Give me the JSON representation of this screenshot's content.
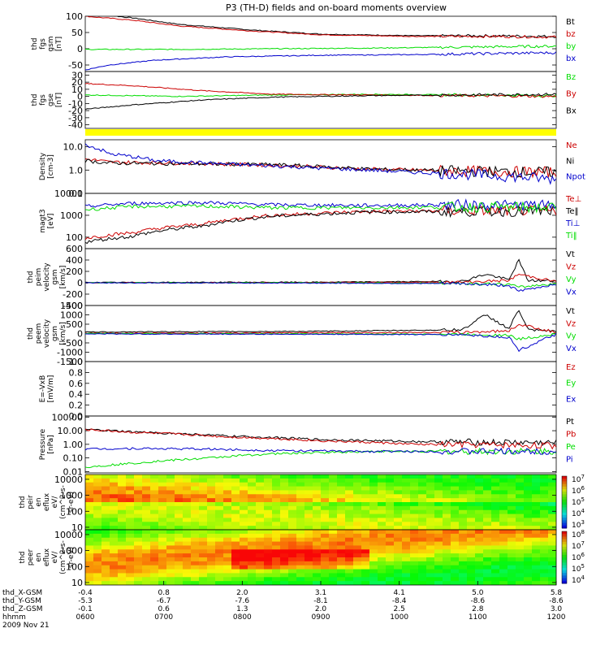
{
  "title": "P3 (TH-D) fields and on-board moments overview",
  "colors": {
    "black": "#000000",
    "red": "#cc0000",
    "green": "#00dd00",
    "blue": "#0000cc",
    "yellow": "#ffff00"
  },
  "chart_data": [
    {
      "type": "line",
      "ylabel": [
        "thd",
        "fgs",
        "gsm",
        "[nT]"
      ],
      "ylim": [
        -70,
        100
      ],
      "yticks": [
        -50,
        0,
        50,
        100
      ],
      "series": [
        {
          "name": "Bt",
          "color": "#000000",
          "x": [
            0,
            0.1,
            0.2,
            0.35,
            0.5,
            0.7,
            0.85,
            1.0
          ],
          "y": [
            110,
            95,
            75,
            58,
            45,
            40,
            40,
            38
          ]
        },
        {
          "name": "bz",
          "color": "#cc0000",
          "x": [
            0,
            0.1,
            0.2,
            0.35,
            0.5,
            0.7,
            0.85,
            1.0
          ],
          "y": [
            100,
            88,
            70,
            55,
            43,
            38,
            38,
            36
          ]
        },
        {
          "name": "by",
          "color": "#00dd00",
          "x": [
            0,
            0.2,
            0.4,
            0.6,
            0.8,
            1.0
          ],
          "y": [
            -2,
            -2,
            0,
            2,
            5,
            8
          ]
        },
        {
          "name": "bx",
          "color": "#0000cc",
          "x": [
            0,
            0.05,
            0.15,
            0.3,
            0.5,
            0.7,
            0.85,
            1.0
          ],
          "y": [
            -65,
            -50,
            -35,
            -25,
            -20,
            -18,
            -15,
            -12
          ]
        }
      ]
    },
    {
      "type": "line",
      "ylabel": [
        "thd",
        "fgs",
        "gse",
        "[nT]"
      ],
      "ylim": [
        -45,
        35
      ],
      "yticks": [
        -40,
        -30,
        -20,
        -10,
        0,
        10,
        20,
        30
      ],
      "series": [
        {
          "name": "Bz",
          "color": "#00dd00",
          "x": [
            0,
            0.2,
            0.4,
            0.6,
            0.8,
            1.0
          ],
          "y": [
            2,
            0,
            2,
            3,
            2,
            1
          ]
        },
        {
          "name": "By",
          "color": "#cc0000",
          "x": [
            0,
            0.1,
            0.25,
            0.4,
            0.6,
            0.8,
            1.0
          ],
          "y": [
            18,
            15,
            8,
            3,
            2,
            1,
            0
          ]
        },
        {
          "name": "Bx",
          "color": "#000000",
          "x": [
            0,
            0.1,
            0.25,
            0.4,
            0.6,
            0.8,
            1.0
          ],
          "y": [
            -18,
            -12,
            -5,
            -1,
            1,
            2,
            3
          ]
        }
      ]
    },
    {
      "type": "line",
      "ylabel": [
        "Density",
        "[cm-3]"
      ],
      "yscale": "log",
      "ylim": [
        0.1,
        20
      ],
      "ytick_labels": [
        "0.1",
        "1.0",
        "10.0"
      ],
      "series": [
        {
          "name": "Ne",
          "color": "#cc0000",
          "x": [
            0,
            0.05,
            0.2,
            0.4,
            0.6,
            0.8,
            1.0
          ],
          "y": [
            3.0,
            2.2,
            2.0,
            1.6,
            1.1,
            0.9,
            0.8
          ]
        },
        {
          "name": "Ni",
          "color": "#000000",
          "x": [
            0,
            0.05,
            0.2,
            0.4,
            0.6,
            0.8,
            1.0
          ],
          "y": [
            2.5,
            2.0,
            1.9,
            1.7,
            1.1,
            0.9,
            0.8
          ]
        },
        {
          "name": "Npot",
          "color": "#0000cc",
          "x": [
            0,
            0.05,
            0.15,
            0.3,
            0.5,
            0.7,
            1.0
          ],
          "y": [
            12,
            5,
            2.5,
            1.8,
            1.2,
            0.8,
            0.4
          ]
        }
      ]
    },
    {
      "type": "line",
      "ylabel": [
        "magt3",
        "[eV]"
      ],
      "yscale": "log",
      "ylim": [
        30,
        10000
      ],
      "ytick_labels": [
        "100",
        "1000",
        "10000"
      ],
      "series": [
        {
          "name": "Te⊥",
          "color": "#cc0000",
          "x": [
            0,
            0.1,
            0.25,
            0.4,
            0.6,
            0.8,
            1.0
          ],
          "y": [
            90,
            160,
            400,
            1000,
            1500,
            1600,
            1600
          ]
        },
        {
          "name": "Te‖",
          "color": "#000000",
          "x": [
            0,
            0.1,
            0.25,
            0.4,
            0.6,
            0.8,
            1.0
          ],
          "y": [
            60,
            110,
            320,
            900,
            1400,
            1500,
            1500
          ]
        },
        {
          "name": "Ti⊥",
          "color": "#0000cc",
          "x": [
            0,
            0.1,
            0.25,
            0.4,
            0.6,
            0.8,
            1.0
          ],
          "y": [
            2500,
            3500,
            3800,
            3000,
            2800,
            3000,
            2800
          ]
        },
        {
          "name": "Ti‖",
          "color": "#00dd00",
          "x": [
            0,
            0.1,
            0.25,
            0.4,
            0.6,
            0.8,
            1.0
          ],
          "y": [
            1800,
            2500,
            2600,
            2200,
            2200,
            2400,
            2200
          ]
        }
      ]
    },
    {
      "type": "line",
      "ylabel": [
        "thd",
        "peim",
        "velocity",
        "gsm",
        "[km/s]"
      ],
      "ylim": [
        -400,
        600
      ],
      "yticks": [
        -400,
        -200,
        0,
        200,
        400,
        600
      ],
      "series": [
        {
          "name": "Vt",
          "color": "#000000",
          "x": [
            0,
            0.5,
            0.8,
            0.85,
            0.9,
            0.92,
            0.94,
            1.0
          ],
          "y": [
            5,
            10,
            25,
            150,
            50,
            400,
            40,
            30
          ]
        },
        {
          "name": "Vz",
          "color": "#cc0000",
          "x": [
            0,
            0.5,
            0.8,
            0.9,
            0.92,
            1.0
          ],
          "y": [
            0,
            5,
            10,
            40,
            150,
            20
          ]
        },
        {
          "name": "Vy",
          "color": "#00dd00",
          "x": [
            0,
            0.5,
            0.8,
            0.9,
            0.92,
            1.0
          ],
          "y": [
            0,
            0,
            -10,
            -30,
            -80,
            -10
          ]
        },
        {
          "name": "Vx",
          "color": "#0000cc",
          "x": [
            0,
            0.5,
            0.8,
            0.9,
            0.92,
            1.0
          ],
          "y": [
            0,
            -5,
            -15,
            -50,
            -150,
            -20
          ]
        }
      ]
    },
    {
      "type": "line",
      "ylabel": [
        "thd",
        "peem",
        "velocity",
        "gsm",
        "[km/s]"
      ],
      "ylim": [
        -1500,
        1500
      ],
      "yticks": [
        -1500,
        -1000,
        -500,
        0,
        500,
        1000,
        1500
      ],
      "series": [
        {
          "name": "Vt",
          "color": "#000000",
          "x": [
            0,
            0.5,
            0.8,
            0.85,
            0.9,
            0.92,
            0.94,
            1.0
          ],
          "y": [
            80,
            120,
            200,
            1000,
            250,
            1300,
            180,
            120
          ]
        },
        {
          "name": "Vz",
          "color": "#cc0000",
          "x": [
            0,
            0.5,
            0.8,
            0.9,
            0.92,
            1.0
          ],
          "y": [
            20,
            40,
            60,
            150,
            500,
            60
          ]
        },
        {
          "name": "Vy",
          "color": "#00dd00",
          "x": [
            0,
            0.5,
            0.8,
            0.9,
            0.92,
            1.0
          ],
          "y": [
            0,
            -20,
            -40,
            -100,
            -300,
            -20
          ]
        },
        {
          "name": "Vx",
          "color": "#0000cc",
          "x": [
            0,
            0.5,
            0.8,
            0.9,
            0.92,
            1.0
          ],
          "y": [
            -20,
            -40,
            -60,
            -200,
            -900,
            -40
          ]
        }
      ]
    },
    {
      "type": "line",
      "ylabel": [
        "E=-VxB",
        "[mV/m]"
      ],
      "ylim": [
        0,
        1
      ],
      "ytick_labels": [
        "0.0",
        "0.2",
        "0.4",
        "0.6",
        "0.8",
        "1.0"
      ],
      "series": [
        {
          "name": "Ez",
          "color": "#cc0000",
          "x": [],
          "y": []
        },
        {
          "name": "Ey",
          "color": "#00dd00",
          "x": [],
          "y": []
        },
        {
          "name": "Ex",
          "color": "#0000cc",
          "x": [],
          "y": []
        }
      ]
    },
    {
      "type": "line",
      "ylabel": [
        "Pressure",
        "[nPa]"
      ],
      "yscale": "log",
      "ylim": [
        0.008,
        120
      ],
      "ytick_labels": [
        "0.01",
        "0.10",
        "1.00",
        "10.00",
        "100.00"
      ],
      "series": [
        {
          "name": "Pt",
          "color": "#000000",
          "x": [
            0,
            0.1,
            0.3,
            0.5,
            0.7,
            0.85,
            1.0
          ],
          "y": [
            12,
            8,
            4,
            2.2,
            1.6,
            1.4,
            1.3
          ]
        },
        {
          "name": "Pb",
          "color": "#cc0000",
          "x": [
            0,
            0.1,
            0.3,
            0.5,
            0.7,
            0.85,
            1.0
          ],
          "y": [
            12,
            7.5,
            3.5,
            1.8,
            1.0,
            0.9,
            0.8
          ]
        },
        {
          "name": "Pe",
          "color": "#00dd00",
          "x": [
            0,
            0.1,
            0.25,
            0.4,
            0.6,
            0.8,
            1.0
          ],
          "y": [
            0.02,
            0.04,
            0.09,
            0.2,
            0.3,
            0.3,
            0.3
          ]
        },
        {
          "name": "Pi",
          "color": "#0000cc",
          "x": [
            0,
            0.1,
            0.25,
            0.4,
            0.6,
            0.8,
            1.0
          ],
          "y": [
            0.45,
            0.5,
            0.45,
            0.35,
            0.3,
            0.3,
            0.3
          ]
        }
      ]
    },
    {
      "type": "heatmap",
      "ylabel": [
        "thd",
        "peir",
        "en",
        "eflux",
        "eV/",
        "(cm^2-s-",
        "sr-eV)"
      ],
      "yscale": "log",
      "ylim": [
        7,
        20000
      ],
      "ytick_labels": [
        "10",
        "100",
        "1000",
        "10000"
      ],
      "colorbar": {
        "labels": [
          "10^3",
          "10^4",
          "10^5",
          "10^6",
          "10^7"
        ]
      }
    },
    {
      "type": "heatmap",
      "ylabel": [
        "thd",
        "peer",
        "en",
        "eflux",
        "eV/",
        "(cm^2-s-",
        "sr-eV)"
      ],
      "yscale": "log",
      "ylim": [
        7,
        20000
      ],
      "ytick_labels": [
        "10",
        "100",
        "1000",
        "10000"
      ],
      "colorbar": {
        "labels": [
          "10^4",
          "10^5",
          "10^6",
          "10^7",
          "10^8"
        ]
      }
    }
  ],
  "xaxis": {
    "rows": [
      {
        "label": "thd_X-GSM",
        "values": [
          "-0.4",
          "0.8",
          "2.0",
          "3.1",
          "4.1",
          "5.0",
          "5.8"
        ]
      },
      {
        "label": "thd_Y-GSM",
        "values": [
          "-5.3",
          "-6.7",
          "-7.6",
          "-8.1",
          "-8.4",
          "-8.6",
          "-8.6"
        ]
      },
      {
        "label": "thd_Z-GSM",
        "values": [
          "-0.1",
          "0.6",
          "1.3",
          "2.0",
          "2.5",
          "2.8",
          "3.0"
        ]
      },
      {
        "label": "hhmm",
        "values": [
          "0600",
          "0700",
          "0800",
          "0900",
          "1000",
          "1100",
          "1200"
        ]
      }
    ],
    "date": "2009 Nov 21"
  }
}
